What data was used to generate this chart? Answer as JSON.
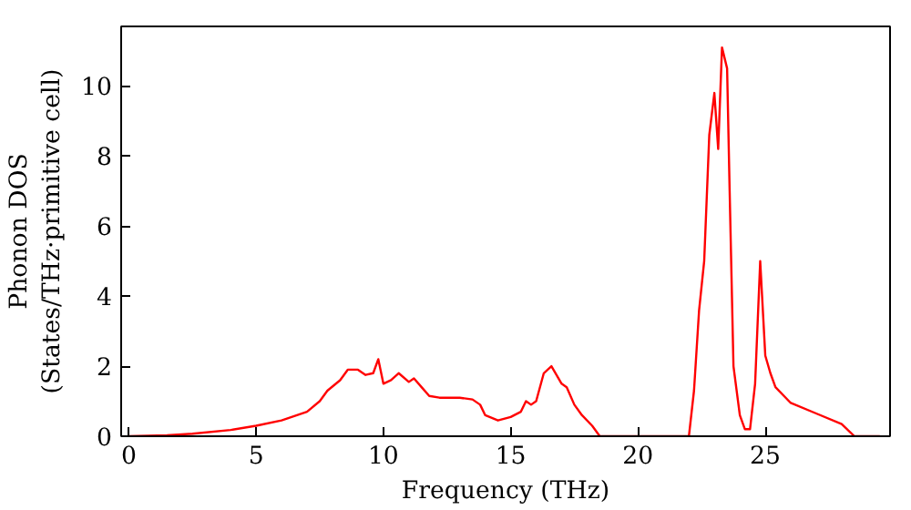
{
  "chart_data": {
    "type": "line",
    "xlabel": "Frequency (THz)",
    "ylabel": "Phonon DOS\n(States/THz·primitive cell)",
    "xlim": [
      -0.3,
      29.9
    ],
    "ylim": [
      0,
      11.7
    ],
    "xticks": [
      0,
      5,
      10,
      15,
      20,
      25
    ],
    "yticks": [
      0,
      2,
      4,
      6,
      8,
      10
    ],
    "grid": false,
    "series": [
      {
        "color": "#ff0000",
        "x": [
          0,
          1.5,
          2.5,
          4,
          5,
          6,
          7,
          7.5,
          7.8,
          8.3,
          8.6,
          9.0,
          9.3,
          9.6,
          9.8,
          10.0,
          10.3,
          10.6,
          11.0,
          11.2,
          11.5,
          11.8,
          12.2,
          12.5,
          13,
          13.5,
          13.8,
          14,
          14.5,
          15.0,
          15.4,
          15.6,
          15.8,
          16.0,
          16.3,
          16.6,
          17.0,
          17.2,
          17.5,
          17.8,
          18.2,
          18.5,
          22.0,
          22.2,
          22.4,
          22.6,
          22.8,
          23.0,
          23.15,
          23.3,
          23.5,
          23.6,
          23.75,
          24.0,
          24.2,
          24.4,
          24.6,
          24.8,
          25.0,
          25.2,
          25.4,
          26,
          27,
          28,
          28.5,
          29.5
        ],
        "values": [
          0,
          0.03,
          0.07,
          0.18,
          0.3,
          0.45,
          0.7,
          1.0,
          1.3,
          1.6,
          1.9,
          1.9,
          1.75,
          1.8,
          2.2,
          1.5,
          1.6,
          1.8,
          1.55,
          1.65,
          1.4,
          1.15,
          1.1,
          1.1,
          1.1,
          1.05,
          0.9,
          0.6,
          0.45,
          0.55,
          0.7,
          1.0,
          0.9,
          1.0,
          1.8,
          2.0,
          1.5,
          1.4,
          0.9,
          0.6,
          0.3,
          0,
          0,
          1.3,
          3.6,
          5.0,
          8.6,
          9.8,
          8.2,
          11.1,
          10.5,
          7.0,
          2.0,
          0.6,
          0.2,
          0.2,
          1.5,
          5.0,
          2.3,
          1.8,
          1.4,
          0.95,
          0.65,
          0.35,
          0,
          0
        ]
      }
    ]
  }
}
